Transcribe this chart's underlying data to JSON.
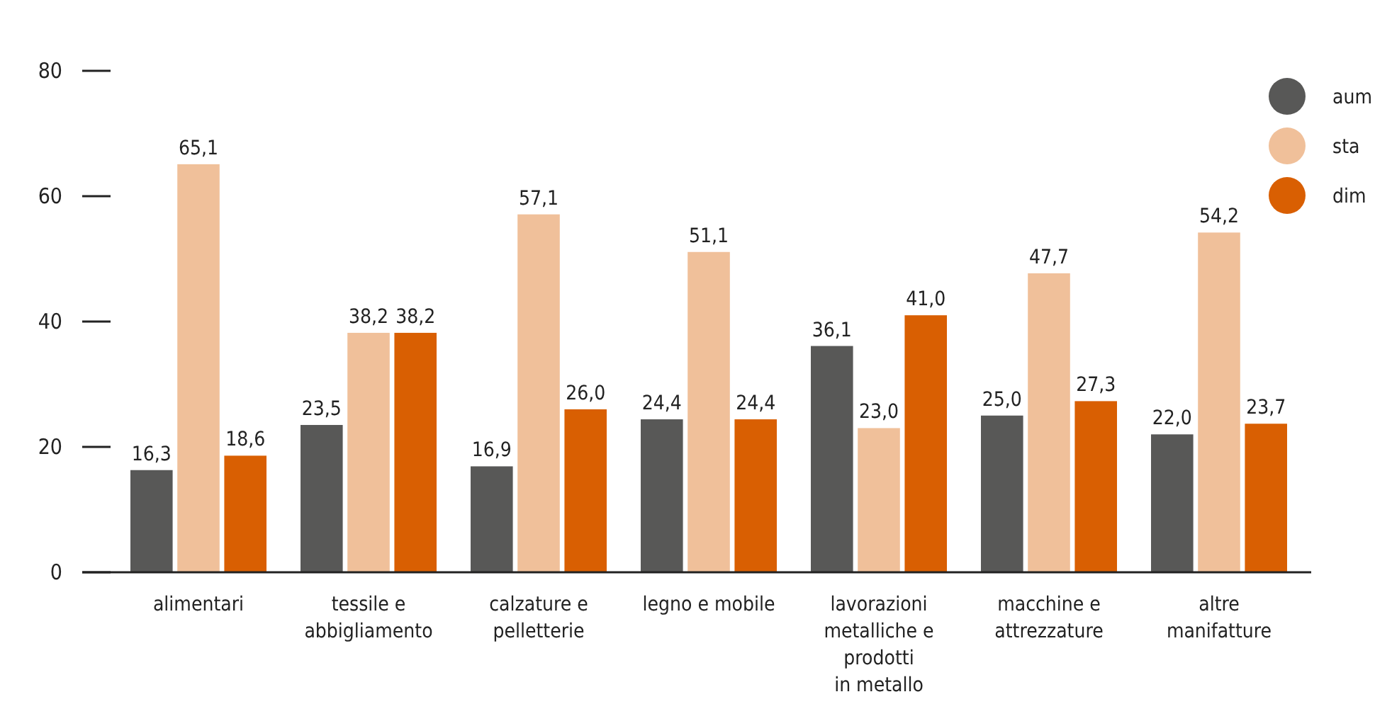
{
  "chart_data": {
    "type": "bar",
    "categories": [
      "alimentari",
      "tessile e\nabbigliamento",
      "calzature e\npelletterie",
      "legno e mobile",
      "lavorazioni\nmetalliche e\nprodotti\nin metallo",
      "macchine e\nattrezzature",
      "altre\nmanifatture"
    ],
    "series": [
      {
        "name": "aum",
        "color": "#585857",
        "values": [
          16.3,
          23.5,
          16.9,
          24.4,
          36.1,
          25.0,
          22.0
        ],
        "value_labels": [
          "16,3",
          "23,5",
          "16,9",
          "24,4",
          "36,1",
          "25,0",
          "22,0"
        ]
      },
      {
        "name": "sta",
        "color": "#f0c09a",
        "values": [
          65.1,
          38.2,
          57.1,
          51.1,
          23.0,
          47.7,
          54.2
        ],
        "value_labels": [
          "65,1",
          "38,2",
          "57,1",
          "51,1",
          "23,0",
          "47,7",
          "54,2"
        ]
      },
      {
        "name": "dim",
        "color": "#d95f02",
        "values": [
          18.6,
          38.2,
          26.0,
          24.4,
          41.0,
          27.3,
          23.7
        ],
        "value_labels": [
          "18,6",
          "38,2",
          "26,0",
          "24,4",
          "41,0",
          "27,3",
          "23,7"
        ]
      }
    ],
    "ylim": [
      0,
      80
    ],
    "yticks": [
      0,
      20,
      40,
      60,
      80
    ],
    "grid": false,
    "legend": "top right"
  }
}
